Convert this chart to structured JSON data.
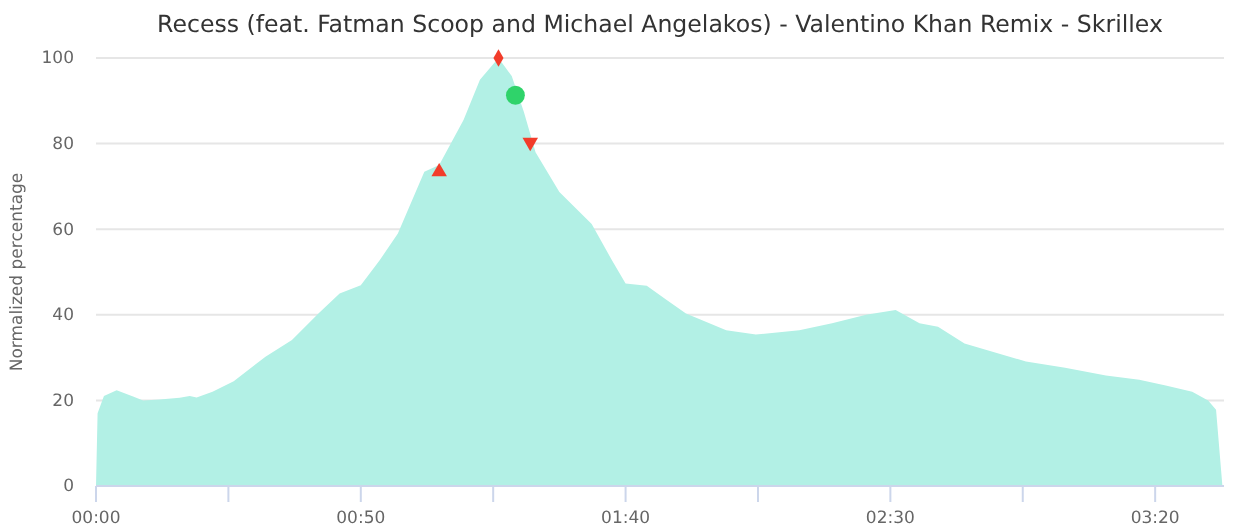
{
  "chart_data": {
    "type": "area",
    "title": "Recess (feat. Fatman Scoop and Michael Angelakos) - Valentino Khan Remix - Skrillex",
    "ylabel": "Normalized percentage",
    "xlim": [
      0,
      213
    ],
    "ylim": [
      0,
      100
    ],
    "xticks": [
      {
        "value": 0,
        "label": "00:00"
      },
      {
        "value": 25,
        "label": null
      },
      {
        "value": 50,
        "label": "00:50"
      },
      {
        "value": 75,
        "label": null
      },
      {
        "value": 100,
        "label": "01:40"
      },
      {
        "value": 125,
        "label": null
      },
      {
        "value": 150,
        "label": "02:30"
      },
      {
        "value": 175,
        "label": null
      },
      {
        "value": 200,
        "label": "03:20"
      }
    ],
    "yticks": [
      0,
      20,
      40,
      60,
      80,
      100
    ],
    "grid": "y",
    "series": [
      {
        "color": "#b2f0e5",
        "x": [
          0,
          0.3,
          1.5,
          3.9,
          7,
          8.9,
          12,
          15.8,
          17.7,
          19,
          22,
          26,
          32,
          37,
          42,
          46,
          50,
          53.6,
          57,
          62,
          64.8,
          69.4,
          72.5,
          76,
          78.5,
          80.8,
          83,
          87.5,
          93.6,
          97.4,
          100,
          104,
          107.7,
          111.4,
          119,
          124.6,
          132.8,
          139,
          145.4,
          151,
          155.5,
          159,
          164,
          175.6,
          183,
          190.7,
          197,
          202,
          207,
          210,
          211.5,
          212.7
        ],
        "values": [
          0,
          17,
          21,
          22.4,
          20.9,
          20,
          20.2,
          20.6,
          21,
          20.7,
          22,
          24.5,
          30.2,
          34.1,
          40.3,
          45,
          46.9,
          52.8,
          59,
          73.4,
          75,
          85.5,
          94.9,
          100,
          95.8,
          87.4,
          78,
          68.7,
          61.2,
          52.8,
          47.3,
          46.8,
          43.5,
          40.3,
          36.4,
          35.4,
          36.4,
          38,
          40,
          41.1,
          38,
          37.2,
          33.3,
          29.1,
          27.6,
          25.8,
          24.8,
          23.5,
          22,
          20,
          17.8,
          0
        ]
      },
      {
        "type": "scatter",
        "marker": "diamond",
        "color": "#f23c2a",
        "x": [
          76
        ],
        "values": [
          100
        ]
      },
      {
        "type": "scatter",
        "marker": "circle",
        "color": "#2fd36a",
        "x": [
          79.2
        ],
        "values": [
          91.3
        ]
      },
      {
        "type": "scatter",
        "marker": "triangle",
        "color": "#f23c2a",
        "x": [
          64.8
        ],
        "values": [
          73.4
        ]
      },
      {
        "type": "scatter",
        "marker": "triangle-down",
        "color": "#f23c2a",
        "x": [
          82
        ],
        "values": [
          80.3
        ]
      }
    ]
  }
}
